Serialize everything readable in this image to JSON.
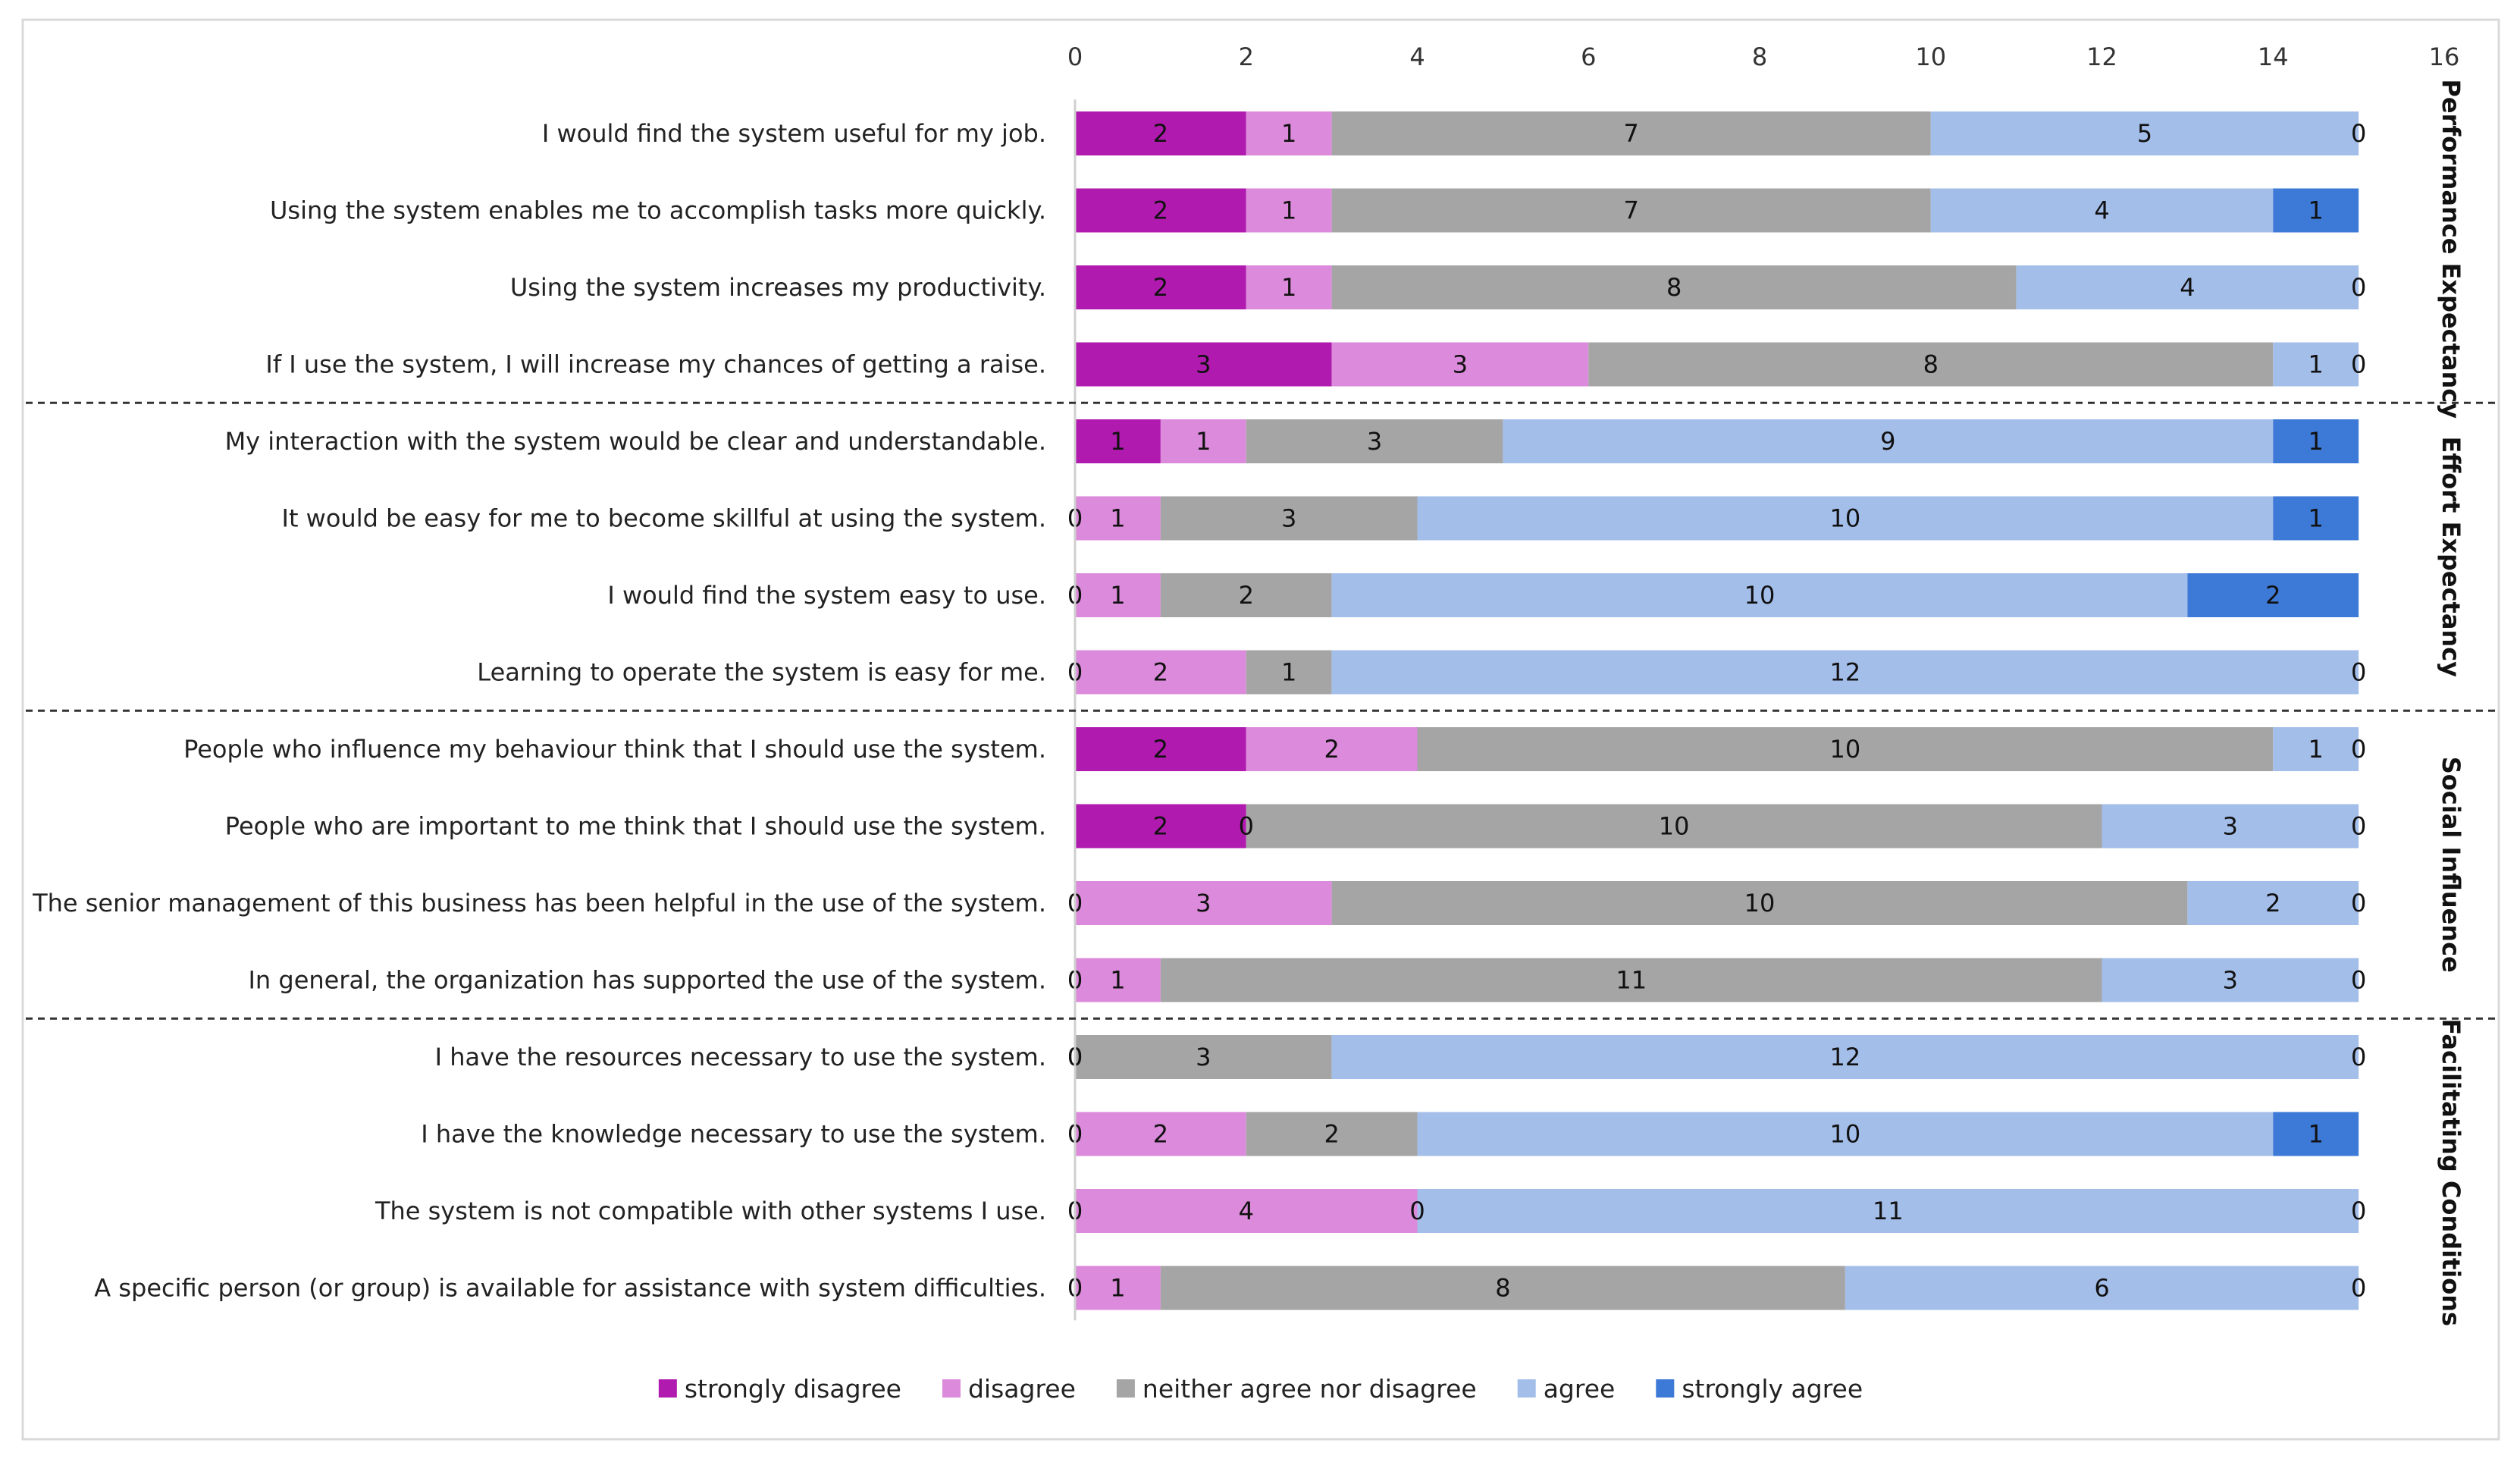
{
  "chart_data": {
    "type": "bar",
    "orientation": "horizontal",
    "stacked": true,
    "xlim": [
      0,
      16
    ],
    "xticks": [
      "0",
      "2",
      "4",
      "6",
      "8",
      "10",
      "12",
      "14",
      "16"
    ],
    "grid": false,
    "legend_position": "bottom",
    "series": [
      {
        "name": "strongly disagree",
        "color": "#B01AAE"
      },
      {
        "name": "disagree",
        "color": "#DC8ADB"
      },
      {
        "name": "neither agree nor disagree",
        "color": "#A5A5A5"
      },
      {
        "name": "agree",
        "color": "#A4BEEA"
      },
      {
        "name": "strongly agree",
        "color": "#3D79D6"
      }
    ],
    "groups": [
      {
        "name": "Performance Expectancy",
        "rows": [
          {
            "label": "I would find the system useful for my job.",
            "values": [
              2,
              1,
              7,
              5,
              0
            ]
          },
          {
            "label": "Using the system enables me to accomplish tasks more quickly.",
            "values": [
              2,
              1,
              7,
              4,
              1
            ]
          },
          {
            "label": "Using the system increases my productivity.",
            "values": [
              2,
              1,
              8,
              4,
              0
            ]
          },
          {
            "label": "If I use the system, I will increase my chances of getting a raise.",
            "values": [
              3,
              3,
              8,
              1,
              0
            ]
          }
        ]
      },
      {
        "name": "Effort Expectancy",
        "rows": [
          {
            "label": "My interaction with the system would be clear and understandable.",
            "values": [
              1,
              1,
              3,
              9,
              1
            ]
          },
          {
            "label": "It would be easy for me to become skillful at using the system.",
            "values": [
              0,
              1,
              3,
              10,
              1
            ]
          },
          {
            "label": "I would find the system easy to use.",
            "values": [
              0,
              1,
              2,
              10,
              2
            ]
          },
          {
            "label": "Learning to operate the system is easy for me.",
            "values": [
              0,
              2,
              1,
              12,
              0
            ]
          }
        ]
      },
      {
        "name": "Social Influence",
        "rows": [
          {
            "label": "People who influence my behaviour think that I should use the system.",
            "values": [
              2,
              2,
              10,
              1,
              0
            ]
          },
          {
            "label": "People who are important to me think that I should use the system.",
            "values": [
              2,
              0,
              10,
              3,
              0
            ]
          },
          {
            "label": "The senior management of this business has been helpful in the use of the system.",
            "values": [
              0,
              3,
              10,
              2,
              0
            ]
          },
          {
            "label": "In general, the organization has supported the use of the system.",
            "values": [
              0,
              1,
              11,
              3,
              0
            ]
          }
        ]
      },
      {
        "name": "Facilitating Conditions",
        "rows": [
          {
            "label": "I have the resources necessary to use the system.",
            "values": [
              0,
              0,
              3,
              12,
              0
            ]
          },
          {
            "label": "I have the knowledge necessary to use the system.",
            "values": [
              0,
              2,
              2,
              10,
              1
            ]
          },
          {
            "label": "The system is not compatible with other systems I use.",
            "values": [
              0,
              4,
              0,
              11,
              0
            ]
          },
          {
            "label": "A specific person (or group) is available for assistance with system difficulties.",
            "values": [
              0,
              1,
              8,
              6,
              0
            ]
          }
        ]
      }
    ]
  }
}
